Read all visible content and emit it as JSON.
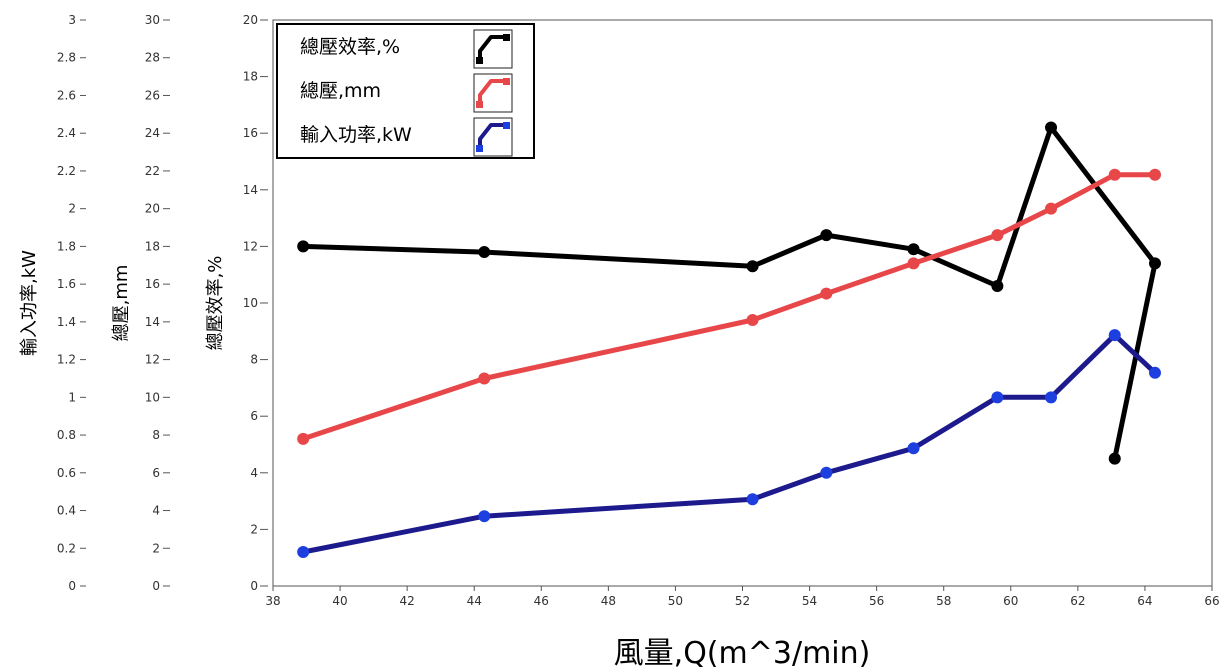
{
  "chart_data": {
    "type": "line",
    "xlabel": "風量,Q(m^3/min)",
    "xlim": [
      38,
      66
    ],
    "x_ticks": [
      "38",
      "40",
      "42",
      "44",
      "46",
      "48",
      "50",
      "52",
      "54",
      "56",
      "58",
      "60",
      "62",
      "64",
      "66"
    ],
    "grid": false,
    "legend_placement": "top-left",
    "y_axes": [
      {
        "id": "efficiency",
        "label": "總壓效率,%",
        "ylim": [
          0,
          20
        ],
        "ticks": [
          "0",
          "2",
          "4",
          "6",
          "8",
          "10",
          "12",
          "14",
          "16",
          "18",
          "20"
        ]
      },
      {
        "id": "pressure",
        "label": "總壓,mm",
        "ylim": [
          0,
          30
        ],
        "ticks": [
          "0",
          "2",
          "4",
          "6",
          "8",
          "10",
          "12",
          "14",
          "16",
          "18",
          "20",
          "22",
          "24",
          "26",
          "28",
          "30"
        ]
      },
      {
        "id": "power",
        "label": "輸入功率,kW",
        "ylim": [
          0,
          3
        ],
        "ticks": [
          "0",
          "0.2",
          "0.4",
          "0.6",
          "0.8",
          "1",
          "1.2",
          "1.4",
          "1.6",
          "1.8",
          "2",
          "2.2",
          "2.4",
          "2.6",
          "2.8",
          "3"
        ]
      }
    ],
    "series": [
      {
        "name": "總壓效率,%",
        "axis": "efficiency",
        "color": "#000000",
        "x": [
          38.9,
          44.3,
          52.3,
          54.5,
          57.1,
          59.6,
          61.2,
          64.3,
          63.1
        ],
        "y": [
          12.0,
          11.8,
          11.3,
          12.4,
          11.9,
          10.6,
          16.2,
          11.4,
          4.5
        ]
      },
      {
        "name": "總壓,mm",
        "axis": "pressure",
        "color": "#e8474a",
        "x": [
          38.9,
          44.3,
          52.3,
          54.5,
          57.1,
          59.6,
          61.2,
          63.1,
          64.3
        ],
        "y": [
          7.8,
          11.0,
          14.1,
          15.5,
          17.1,
          18.6,
          20.0,
          21.8,
          21.8
        ]
      },
      {
        "name": "輸入功率,kW",
        "axis": "power",
        "color": "#1c1a8c",
        "marker_color": "#1e3fe0",
        "x": [
          38.9,
          44.3,
          52.3,
          54.5,
          57.1,
          59.6,
          61.2,
          63.1,
          64.3
        ],
        "y": [
          0.18,
          0.37,
          0.46,
          0.6,
          0.73,
          1.0,
          1.0,
          1.33,
          1.13
        ]
      }
    ]
  }
}
